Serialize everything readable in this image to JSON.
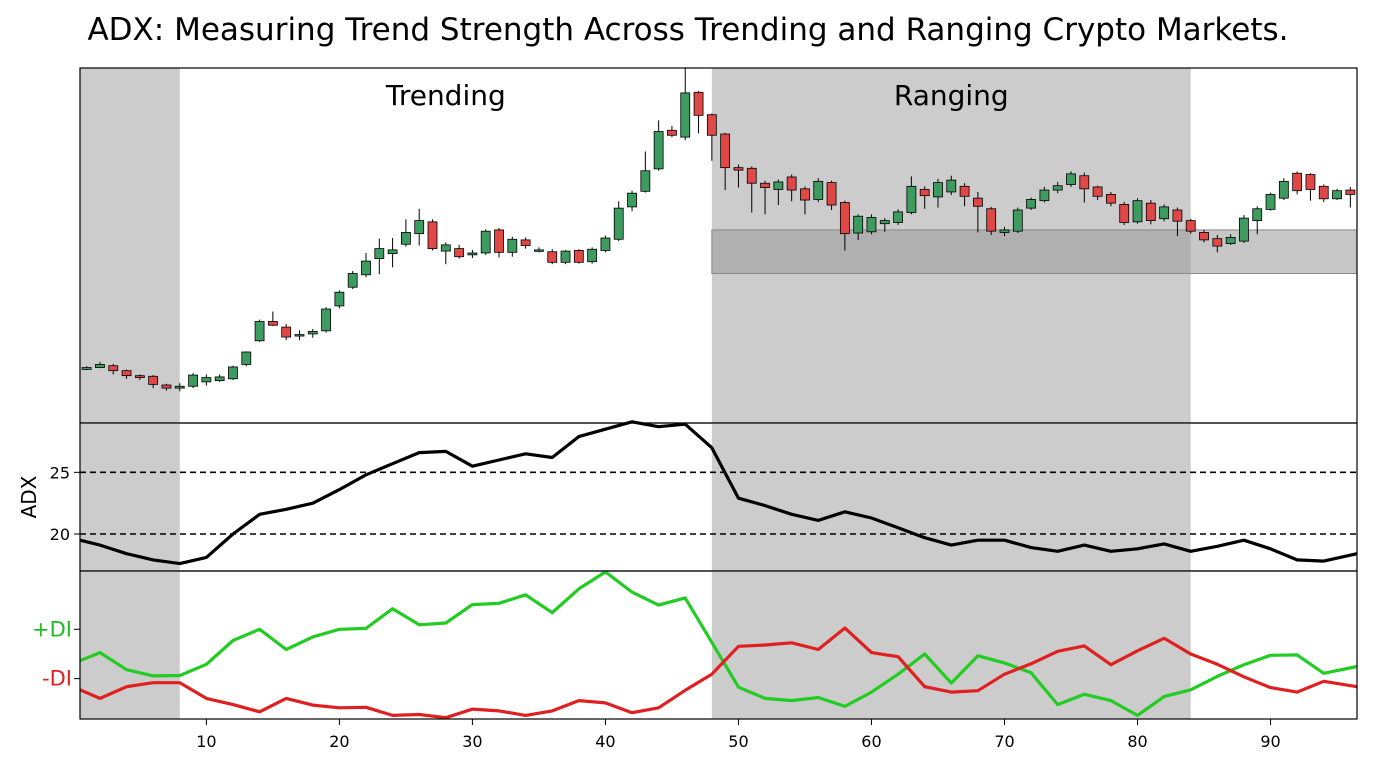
{
  "chart_data": {
    "type": "candlestick+line",
    "title": "ADX: Measuring Trend Strength Across Trending and Ranging Crypto Markets.",
    "xlim": [
      0.5,
      96.5
    ],
    "xticks": [
      10,
      20,
      30,
      40,
      50,
      60,
      70,
      80,
      90
    ],
    "regions": [
      {
        "x0": 0.5,
        "x1": 8,
        "label": "",
        "color": "#cccccc"
      },
      {
        "x0": 48,
        "x1": 84,
        "label": "Ranging",
        "color": "#cccccc"
      }
    ],
    "region_labels": [
      {
        "text": "Trending",
        "x": 28
      },
      {
        "text": "Ranging",
        "x": 66
      }
    ],
    "range_band": {
      "x0": 48,
      "x1": 96.5,
      "low": 56,
      "high": 63,
      "color": "#999999"
    },
    "price": {
      "ylim": [
        32,
        89
      ],
      "up_color": "#3e9b5f",
      "down_color": "#e04848",
      "candles": [
        [
          1,
          40.6,
          40.9,
          40.5,
          41.1
        ],
        [
          2,
          40.9,
          41.4,
          40.8,
          41.8
        ],
        [
          3,
          41.2,
          40.4,
          39.8,
          41.5
        ],
        [
          4,
          40.4,
          39.6,
          39.1,
          40.6
        ],
        [
          5,
          39.6,
          39.3,
          38.9,
          39.8
        ],
        [
          6,
          39.5,
          38.2,
          37.6,
          39.7
        ],
        [
          7,
          38.1,
          37.6,
          37.2,
          38.3
        ],
        [
          8,
          37.6,
          37.9,
          37.1,
          38.4
        ],
        [
          9,
          37.9,
          39.7,
          37.6,
          40.0
        ],
        [
          10,
          38.6,
          39.3,
          38.0,
          39.8
        ],
        [
          11,
          38.8,
          39.4,
          38.6,
          39.8
        ],
        [
          12,
          39.1,
          41.0,
          38.9,
          41.2
        ],
        [
          13,
          41.4,
          43.4,
          41.1,
          43.5
        ],
        [
          14,
          45.2,
          48.3,
          45.0,
          48.6
        ],
        [
          15,
          48.3,
          47.7,
          47.6,
          49.9
        ],
        [
          16,
          47.4,
          45.8,
          45.3,
          47.9
        ],
        [
          17,
          46.2,
          46.2,
          45.3,
          46.9
        ],
        [
          18,
          46.3,
          46.7,
          45.7,
          47.1
        ],
        [
          19,
          46.8,
          50.3,
          46.5,
          50.6
        ],
        [
          20,
          50.8,
          53.0,
          50.4,
          53.3
        ],
        [
          21,
          53.8,
          56.0,
          53.5,
          56.4
        ],
        [
          22,
          55.8,
          58.0,
          55.4,
          59.3
        ],
        [
          23,
          58.4,
          60.0,
          55.9,
          61.6
        ],
        [
          24,
          59.2,
          59.8,
          57.0,
          61.7
        ],
        [
          25,
          60.7,
          62.6,
          60.3,
          64.7
        ],
        [
          26,
          62.4,
          64.5,
          60.5,
          66.4
        ],
        [
          27,
          64.3,
          60.0,
          59.7,
          64.7
        ],
        [
          28,
          59.6,
          60.6,
          57.5,
          61.0
        ],
        [
          29,
          60.0,
          58.7,
          58.4,
          60.6
        ],
        [
          30,
          59.0,
          59.3,
          58.5,
          59.8
        ],
        [
          31,
          59.3,
          62.8,
          59.0,
          63.1
        ],
        [
          32,
          63.0,
          59.4,
          58.6,
          63.3
        ],
        [
          33,
          59.4,
          61.5,
          58.7,
          61.9
        ],
        [
          34,
          61.4,
          60.5,
          60.0,
          61.8
        ],
        [
          35,
          59.7,
          59.8,
          59.4,
          60.2
        ],
        [
          36,
          59.5,
          57.8,
          57.5,
          59.9
        ],
        [
          37,
          57.8,
          59.6,
          57.5,
          59.8
        ],
        [
          38,
          59.7,
          57.8,
          57.6,
          59.9
        ],
        [
          39,
          57.9,
          59.9,
          57.6,
          60.2
        ],
        [
          40,
          59.7,
          61.7,
          59.4,
          62.1
        ],
        [
          41,
          61.5,
          66.5,
          61.2,
          67.6
        ],
        [
          42,
          66.7,
          68.9,
          66.0,
          69.3
        ],
        [
          43,
          69.2,
          72.5,
          69.0,
          75.6
        ],
        [
          44,
          72.8,
          78.8,
          72.5,
          80.6
        ],
        [
          45,
          79.0,
          78.2,
          77.9,
          79.7
        ],
        [
          46,
          77.9,
          85.0,
          77.4,
          89.1
        ],
        [
          47,
          85.1,
          81.4,
          78.5,
          85.3
        ],
        [
          48,
          81.5,
          78.2,
          74.1,
          81.7
        ],
        [
          49,
          78.4,
          73.0,
          69.4,
          78.6
        ],
        [
          50,
          73.0,
          72.6,
          69.8,
          73.5
        ],
        [
          51,
          72.9,
          70.5,
          65.8,
          73.2
        ],
        [
          52,
          70.5,
          69.8,
          65.5,
          70.9
        ],
        [
          53,
          69.5,
          70.7,
          67.0,
          71.1
        ],
        [
          54,
          71.5,
          69.4,
          67.6,
          71.9
        ],
        [
          55,
          69.6,
          67.8,
          65.5,
          70.0
        ],
        [
          56,
          67.9,
          70.8,
          67.5,
          71.3
        ],
        [
          57,
          70.6,
          67.0,
          66.2,
          70.9
        ],
        [
          58,
          67.4,
          62.4,
          59.7,
          67.7
        ],
        [
          59,
          62.5,
          65.2,
          61.4,
          65.5
        ],
        [
          60,
          62.7,
          65.0,
          62.3,
          65.5
        ],
        [
          61,
          64.0,
          64.5,
          62.7,
          64.9
        ],
        [
          62,
          64.2,
          65.9,
          63.8,
          66.3
        ],
        [
          63,
          65.8,
          70.0,
          65.5,
          71.6
        ],
        [
          64,
          69.5,
          68.5,
          66.4,
          70.0
        ],
        [
          65,
          68.3,
          70.6,
          66.6,
          71.2
        ],
        [
          66,
          69.1,
          71.0,
          68.6,
          71.7
        ],
        [
          67,
          70.0,
          68.4,
          66.8,
          70.5
        ],
        [
          68,
          68.1,
          66.8,
          62.6,
          69.1
        ],
        [
          69,
          66.4,
          62.8,
          62.2,
          66.7
        ],
        [
          70,
          62.6,
          63.0,
          62.0,
          63.5
        ],
        [
          71,
          62.8,
          66.2,
          62.5,
          66.6
        ],
        [
          72,
          66.5,
          67.9,
          66.2,
          68.2
        ],
        [
          73,
          67.7,
          69.4,
          67.4,
          69.9
        ],
        [
          74,
          69.4,
          70.1,
          68.9,
          70.7
        ],
        [
          75,
          70.3,
          72.0,
          69.9,
          72.4
        ],
        [
          76,
          71.7,
          69.6,
          67.4,
          72.2
        ],
        [
          77,
          69.9,
          68.4,
          67.8,
          70.1
        ],
        [
          78,
          68.7,
          67.3,
          66.8,
          69.1
        ],
        [
          79,
          67.1,
          64.2,
          63.8,
          67.5
        ],
        [
          80,
          64.3,
          67.7,
          64.0,
          68.1
        ],
        [
          81,
          67.3,
          64.5,
          63.9,
          67.8
        ],
        [
          82,
          64.8,
          66.7,
          64.4,
          67.1
        ],
        [
          83,
          66.2,
          64.4,
          62.0,
          66.6
        ],
        [
          84,
          64.5,
          62.8,
          62.4,
          64.8
        ],
        [
          85,
          62.6,
          61.4,
          61.0,
          63.0
        ],
        [
          86,
          61.6,
          60.4,
          59.4,
          62.2
        ],
        [
          87,
          60.8,
          61.8,
          60.6,
          62.3
        ],
        [
          88,
          61.2,
          64.9,
          60.9,
          65.4
        ],
        [
          89,
          64.5,
          66.4,
          62.3,
          66.8
        ],
        [
          90,
          66.3,
          68.7,
          66.1,
          69.0
        ],
        [
          91,
          68.1,
          70.8,
          67.8,
          71.3
        ],
        [
          92,
          72.1,
          69.3,
          68.7,
          72.4
        ],
        [
          93,
          71.9,
          69.5,
          67.7,
          72.1
        ],
        [
          94,
          70.0,
          68.0,
          67.5,
          70.3
        ],
        [
          95,
          68.0,
          69.3,
          67.8,
          69.6
        ],
        [
          96,
          69.4,
          68.7,
          66.6,
          69.9
        ]
      ]
    },
    "adx": {
      "ylabel": "ADX",
      "ylim": [
        17,
        29
      ],
      "yticks": [
        20,
        25
      ],
      "reference_lines": [
        20,
        25
      ],
      "color": "#000000",
      "x": [
        0.5,
        2,
        4,
        6,
        8,
        10,
        12,
        14,
        16,
        18,
        20,
        22,
        24,
        26,
        28,
        30,
        32,
        34,
        36,
        38,
        40,
        42,
        44,
        46,
        48,
        50,
        52,
        54,
        56,
        58,
        60,
        62,
        64,
        66,
        68,
        70,
        72,
        74,
        76,
        78,
        80,
        82,
        84,
        86,
        88,
        90,
        92,
        94,
        96.5
      ],
      "y": [
        19.5,
        19.1,
        18.4,
        17.9,
        17.6,
        18.1,
        20.0,
        21.6,
        22.0,
        22.5,
        23.6,
        24.8,
        25.7,
        26.6,
        26.7,
        25.5,
        26.0,
        26.5,
        26.2,
        27.9,
        28.5,
        29.1,
        28.7,
        28.9,
        27.0,
        22.9,
        22.3,
        21.6,
        21.1,
        21.8,
        21.3,
        20.5,
        19.7,
        19.1,
        19.5,
        19.5,
        18.9,
        18.6,
        19.1,
        18.6,
        18.8,
        19.2,
        18.6,
        19.0,
        19.5,
        18.8,
        17.9,
        17.8,
        18.4
      ]
    },
    "di": {
      "ylim": [
        5,
        38
      ],
      "yticks": [
        {
          "value": 25,
          "label": "+DI",
          "color": "#22bb22"
        },
        {
          "value": 14,
          "label": "-DI",
          "color": "#dd2222"
        }
      ],
      "series": [
        {
          "name": "+DI",
          "color": "#22cc22",
          "values": [
            [
              0.5,
              18.0
            ],
            [
              2,
              19.8
            ],
            [
              4,
              16.0
            ],
            [
              6,
              14.6
            ],
            [
              8,
              14.7
            ],
            [
              10,
              17.2
            ],
            [
              12,
              22.5
            ],
            [
              14,
              25.0
            ],
            [
              16,
              20.5
            ],
            [
              18,
              23.3
            ],
            [
              20,
              25.0
            ],
            [
              22,
              25.2
            ],
            [
              24,
              29.6
            ],
            [
              26,
              26.0
            ],
            [
              28,
              26.4
            ],
            [
              30,
              30.5
            ],
            [
              32,
              30.8
            ],
            [
              34,
              32.7
            ],
            [
              36,
              28.7
            ],
            [
              38,
              34.0
            ],
            [
              40,
              37.8
            ],
            [
              42,
              33.3
            ],
            [
              44,
              30.4
            ],
            [
              46,
              32.0
            ],
            [
              48,
              22.1
            ],
            [
              50,
              12.1
            ],
            [
              52,
              9.6
            ],
            [
              54,
              9.1
            ],
            [
              56,
              9.8
            ],
            [
              58,
              7.8
            ],
            [
              60,
              11.0
            ],
            [
              62,
              15.0
            ],
            [
              64,
              19.5
            ],
            [
              66,
              13.0
            ],
            [
              68,
              19.1
            ],
            [
              70,
              17.5
            ],
            [
              72,
              15.3
            ],
            [
              74,
              8.2
            ],
            [
              76,
              10.5
            ],
            [
              78,
              9.1
            ],
            [
              80,
              5.8
            ],
            [
              82,
              10.0
            ],
            [
              84,
              11.5
            ],
            [
              86,
              14.5
            ],
            [
              88,
              17.1
            ],
            [
              90,
              19.2
            ],
            [
              92,
              19.3
            ],
            [
              94,
              15.2
            ],
            [
              96.5,
              16.7
            ]
          ]
        },
        {
          "name": "-DI",
          "color": "#e02020",
          "values": [
            [
              0.5,
              11.5
            ],
            [
              2,
              9.6
            ],
            [
              4,
              12.2
            ],
            [
              6,
              13.1
            ],
            [
              8,
              13.1
            ],
            [
              10,
              9.6
            ],
            [
              12,
              8.2
            ],
            [
              14,
              6.6
            ],
            [
              16,
              9.6
            ],
            [
              18,
              8.1
            ],
            [
              20,
              7.5
            ],
            [
              22,
              7.6
            ],
            [
              24,
              5.8
            ],
            [
              26,
              6.0
            ],
            [
              28,
              5.3
            ],
            [
              30,
              7.2
            ],
            [
              32,
              6.8
            ],
            [
              34,
              5.8
            ],
            [
              36,
              6.8
            ],
            [
              38,
              9.1
            ],
            [
              40,
              8.6
            ],
            [
              42,
              6.4
            ],
            [
              44,
              7.5
            ],
            [
              46,
              11.4
            ],
            [
              48,
              15.0
            ],
            [
              50,
              21.2
            ],
            [
              52,
              21.5
            ],
            [
              54,
              22.0
            ],
            [
              56,
              20.5
            ],
            [
              58,
              25.3
            ],
            [
              60,
              19.8
            ],
            [
              62,
              18.9
            ],
            [
              64,
              12.2
            ],
            [
              66,
              11.0
            ],
            [
              68,
              11.3
            ],
            [
              70,
              15.0
            ],
            [
              72,
              17.3
            ],
            [
              74,
              20.1
            ],
            [
              76,
              21.3
            ],
            [
              78,
              17.1
            ],
            [
              80,
              20.2
            ],
            [
              82,
              23.0
            ],
            [
              84,
              19.5
            ],
            [
              86,
              17.2
            ],
            [
              88,
              14.4
            ],
            [
              90,
              12.0
            ],
            [
              92,
              11.0
            ],
            [
              94,
              13.4
            ],
            [
              96.5,
              12.2
            ]
          ]
        }
      ]
    }
  }
}
